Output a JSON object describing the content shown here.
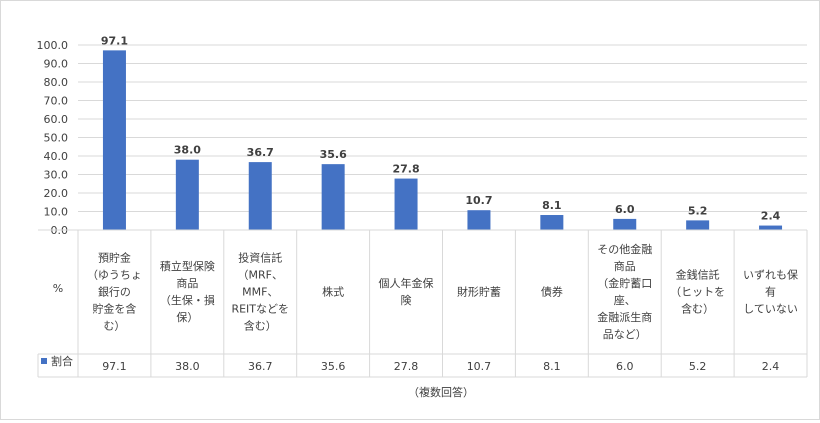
{
  "chart_data": {
    "type": "bar",
    "y_axis": {
      "min": 0,
      "max": 100,
      "step": 10,
      "tick_labels": [
        "0.0",
        "10.0",
        "20.0",
        "30.0",
        "40.0",
        "50.0",
        "60.0",
        "70.0",
        "80.0",
        "90.0",
        "100.0"
      ]
    },
    "grid": true,
    "unit_label": "%",
    "categories": [
      [
        "預貯金",
        "（ゆうちょ",
        "銀行の",
        "貯金を含",
        "む）"
      ],
      [
        "積立型保険",
        "商品",
        "（生保・損",
        "保）"
      ],
      [
        "投資信託",
        "（MRF、",
        "MMF、",
        "REITなどを",
        "含む）"
      ],
      [
        "株式"
      ],
      [
        "個人年金保",
        "険"
      ],
      [
        "財形貯蓄"
      ],
      [
        "債券"
      ],
      [
        "その他金融",
        "商品",
        "（金貯蓄口",
        "座、",
        "金融派生商",
        "品など）"
      ],
      [
        "金銭信託",
        "（ヒットを",
        "含む）"
      ],
      [
        "いずれも保",
        "有",
        "していない"
      ]
    ],
    "series": [
      {
        "name": "割合",
        "color": "#4472c4",
        "values": [
          97.1,
          38.0,
          36.7,
          35.6,
          27.8,
          10.7,
          8.1,
          6.0,
          5.2,
          2.4
        ],
        "value_labels": [
          "97.1",
          "38.0",
          "36.7",
          "35.6",
          "27.8",
          "10.7",
          "8.1",
          "6.0",
          "5.2",
          "2.4"
        ]
      }
    ],
    "footnote": "（複数回答）"
  }
}
